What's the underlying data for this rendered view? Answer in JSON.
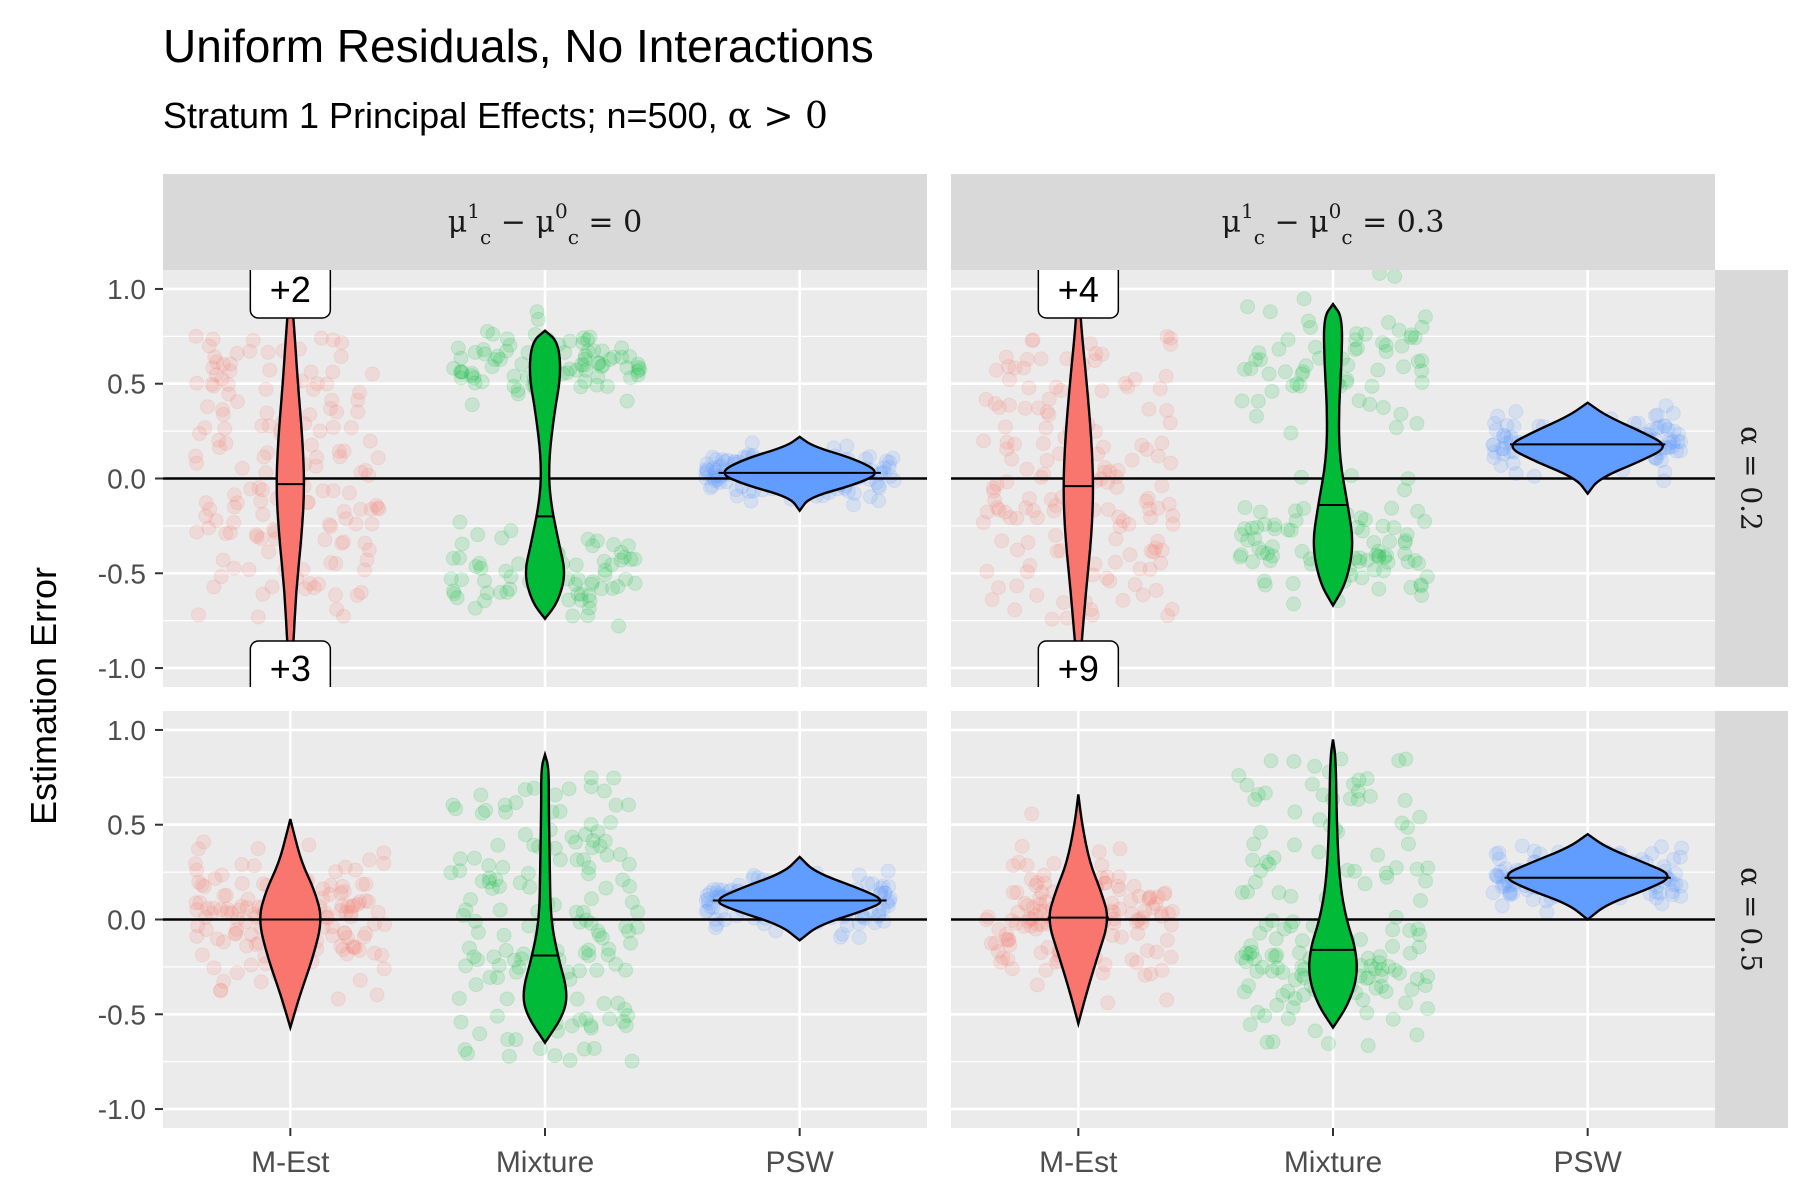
{
  "chart_data": {
    "type": "violin",
    "title": "Uniform Residuals, No Interactions",
    "subtitle_text": "Stratum 1 Principal Effects; n=500, ",
    "subtitle_math": "α > 0",
    "ylabel": "Estimation Error",
    "xlabel": "",
    "ylim": [
      -1.1,
      1.1
    ],
    "y_ticks": [
      "1.0",
      "0.5",
      "0.0",
      "-0.5",
      "-1.0"
    ],
    "y_tick_values": [
      1.0,
      0.5,
      0.0,
      -0.5,
      -1.0
    ],
    "categories": [
      "M-Est",
      "Mixture",
      "PSW"
    ],
    "colors": {
      "M-Est": "#f8766d",
      "Mixture": "#00ba38",
      "PSW": "#619cff"
    },
    "grid": true,
    "reference_line": 0,
    "col_strips": [
      {
        "lhs": "μ",
        "sup1": "1",
        "sub1": "c",
        "op": "−",
        "sup2": "0",
        "sub2": "c",
        "rhs": "= 0"
      },
      {
        "lhs": "μ",
        "sup1": "1",
        "sub1": "c",
        "op": "−",
        "sup2": "0",
        "sub2": "c",
        "rhs": "= 0.3"
      }
    ],
    "row_strips": [
      "α = 0.2",
      "α = 0.5"
    ],
    "panels": [
      {
        "row": 0,
        "col": 0,
        "violins": [
          {
            "category": "M-Est",
            "median": -0.03,
            "profile": [
              [
                -1.05,
                0.0
              ],
              [
                -0.9,
                0.015
              ],
              [
                -0.6,
                0.03
              ],
              [
                -0.3,
                0.06
              ],
              [
                -0.05,
                0.075
              ],
              [
                0.2,
                0.065
              ],
              [
                0.5,
                0.04
              ],
              [
                0.8,
                0.02
              ],
              [
                1.05,
                0.0
              ]
            ],
            "spread": 0.4,
            "center": 0.0,
            "shape": "uniform"
          },
          {
            "category": "Mixture",
            "median": -0.2,
            "profile": [
              [
                -0.74,
                0.0
              ],
              [
                -0.65,
                0.07
              ],
              [
                -0.5,
                0.11
              ],
              [
                -0.35,
                0.075
              ],
              [
                -0.1,
                0.025
              ],
              [
                0.1,
                0.02
              ],
              [
                0.35,
                0.05
              ],
              [
                0.55,
                0.085
              ],
              [
                0.72,
                0.07
              ],
              [
                0.78,
                0.0
              ]
            ],
            "spread": 0.2,
            "center": 0.0,
            "shape": "bimodal"
          },
          {
            "category": "PSW",
            "median": 0.03,
            "profile": [
              [
                -0.17,
                0.0
              ],
              [
                -0.1,
                0.05
              ],
              [
                -0.03,
                0.3
              ],
              [
                0.03,
                0.43
              ],
              [
                0.1,
                0.3
              ],
              [
                0.17,
                0.07
              ],
              [
                0.22,
                0.0
              ]
            ],
            "spread": 0.06,
            "center": 0.03,
            "shape": "normal"
          }
        ],
        "outside_labels": [
          {
            "category": "M-Est",
            "text": "+2",
            "pos": "top"
          },
          {
            "category": "M-Est",
            "text": "+3",
            "pos": "bottom"
          }
        ]
      },
      {
        "row": 0,
        "col": 1,
        "violins": [
          {
            "category": "M-Est",
            "median": -0.04,
            "profile": [
              [
                -1.05,
                0.0
              ],
              [
                -0.9,
                0.015
              ],
              [
                -0.6,
                0.04
              ],
              [
                -0.3,
                0.07
              ],
              [
                -0.05,
                0.08
              ],
              [
                0.2,
                0.07
              ],
              [
                0.5,
                0.045
              ],
              [
                0.8,
                0.015
              ],
              [
                1.05,
                0.0
              ]
            ],
            "spread": 0.45,
            "center": 0.0,
            "shape": "uniform"
          },
          {
            "category": "Mixture",
            "median": -0.14,
            "profile": [
              [
                -0.67,
                0.0
              ],
              [
                -0.55,
                0.07
              ],
              [
                -0.35,
                0.11
              ],
              [
                -0.15,
                0.08
              ],
              [
                0.1,
                0.035
              ],
              [
                0.35,
                0.03
              ],
              [
                0.6,
                0.045
              ],
              [
                0.85,
                0.05
              ],
              [
                0.92,
                0.0
              ]
            ],
            "spread": 0.25,
            "center": 0.0,
            "shape": "bimodal2"
          },
          {
            "category": "PSW",
            "median": 0.18,
            "profile": [
              [
                -0.08,
                0.0
              ],
              [
                0.0,
                0.06
              ],
              [
                0.1,
                0.3
              ],
              [
                0.17,
                0.43
              ],
              [
                0.24,
                0.3
              ],
              [
                0.33,
                0.1
              ],
              [
                0.4,
                0.0
              ]
            ],
            "spread": 0.07,
            "center": 0.18,
            "shape": "normal"
          }
        ],
        "outside_labels": [
          {
            "category": "M-Est",
            "text": "+4",
            "pos": "top"
          },
          {
            "category": "M-Est",
            "text": "+9",
            "pos": "bottom"
          }
        ]
      },
      {
        "row": 1,
        "col": 0,
        "violins": [
          {
            "category": "M-Est",
            "median": 0.0,
            "profile": [
              [
                -0.57,
                0.0
              ],
              [
                -0.4,
                0.05
              ],
              [
                -0.2,
                0.12
              ],
              [
                0.0,
                0.17
              ],
              [
                0.15,
                0.13
              ],
              [
                0.3,
                0.06
              ],
              [
                0.45,
                0.02
              ],
              [
                0.53,
                0.0
              ]
            ],
            "spread": 0.18,
            "center": 0.0,
            "shape": "normal"
          },
          {
            "category": "Mixture",
            "median": -0.19,
            "profile": [
              [
                -0.65,
                0.0
              ],
              [
                -0.5,
                0.1
              ],
              [
                -0.38,
                0.12
              ],
              [
                -0.2,
                0.07
              ],
              [
                0.0,
                0.03
              ],
              [
                0.3,
                0.025
              ],
              [
                0.6,
                0.02
              ],
              [
                0.8,
                0.02
              ],
              [
                0.87,
                0.0
              ]
            ],
            "spread": 0.3,
            "center": 0.0,
            "shape": "uniform"
          },
          {
            "category": "PSW",
            "median": 0.1,
            "profile": [
              [
                -0.11,
                0.0
              ],
              [
                -0.03,
                0.1
              ],
              [
                0.05,
                0.35
              ],
              [
                0.1,
                0.46
              ],
              [
                0.17,
                0.3
              ],
              [
                0.25,
                0.08
              ],
              [
                0.33,
                0.0
              ]
            ],
            "spread": 0.07,
            "center": 0.1,
            "shape": "normal"
          }
        ],
        "outside_labels": []
      },
      {
        "row": 1,
        "col": 1,
        "violins": [
          {
            "category": "M-Est",
            "median": 0.01,
            "profile": [
              [
                -0.55,
                0.0
              ],
              [
                -0.4,
                0.04
              ],
              [
                -0.2,
                0.1
              ],
              [
                0.0,
                0.165
              ],
              [
                0.15,
                0.12
              ],
              [
                0.3,
                0.06
              ],
              [
                0.5,
                0.02
              ],
              [
                0.66,
                0.0
              ]
            ],
            "spread": 0.18,
            "center": 0.0,
            "shape": "normal"
          },
          {
            "category": "Mixture",
            "median": -0.16,
            "profile": [
              [
                -0.57,
                0.0
              ],
              [
                -0.45,
                0.08
              ],
              [
                -0.3,
                0.13
              ],
              [
                -0.15,
                0.12
              ],
              [
                0.0,
                0.07
              ],
              [
                0.2,
                0.035
              ],
              [
                0.5,
                0.02
              ],
              [
                0.85,
                0.015
              ],
              [
                0.95,
                0.0
              ]
            ],
            "spread": 0.25,
            "center": -0.1,
            "shape": "skew"
          },
          {
            "category": "PSW",
            "median": 0.22,
            "profile": [
              [
                0.0,
                0.0
              ],
              [
                0.08,
                0.1
              ],
              [
                0.16,
                0.32
              ],
              [
                0.23,
                0.46
              ],
              [
                0.3,
                0.3
              ],
              [
                0.38,
                0.1
              ],
              [
                0.45,
                0.0
              ]
            ],
            "spread": 0.07,
            "center": 0.22,
            "shape": "normal"
          }
        ],
        "outside_labels": []
      }
    ]
  }
}
